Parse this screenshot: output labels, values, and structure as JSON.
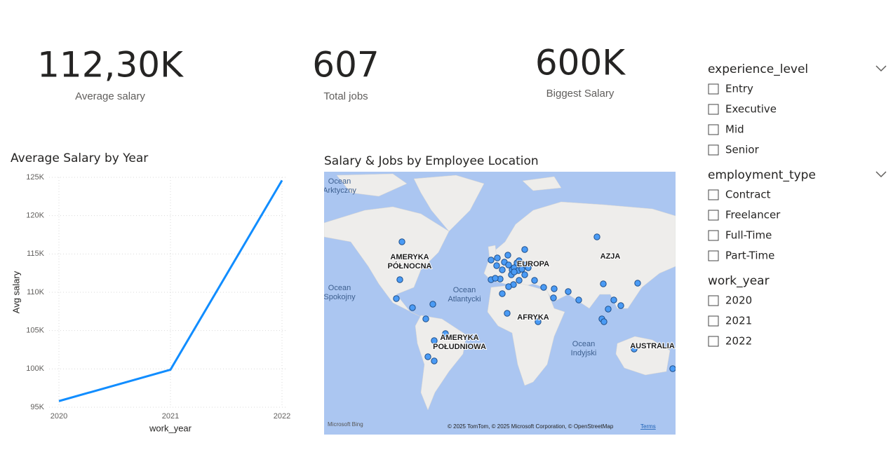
{
  "kpis": [
    {
      "value": "112,30K",
      "label": "Average salary"
    },
    {
      "value": "607",
      "label": "Total jobs"
    },
    {
      "value": "600K",
      "label": "Biggest Salary"
    }
  ],
  "chart_data": {
    "type": "line",
    "title": "Average Salary by Year",
    "x_label": "work_year",
    "y_label": "Avg salary",
    "categories": [
      "2020",
      "2021",
      "2022"
    ],
    "values": [
      95800,
      99900,
      124600
    ],
    "color": "#118DFF",
    "ylim": [
      95000,
      125000
    ],
    "yticks": [
      {
        "value": 95000,
        "label": "95K"
      },
      {
        "value": 100000,
        "label": "100K"
      },
      {
        "value": 105000,
        "label": "105K"
      },
      {
        "value": 110000,
        "label": "110K"
      },
      {
        "value": 115000,
        "label": "115K"
      },
      {
        "value": 120000,
        "label": "120K"
      },
      {
        "value": 125000,
        "label": "125K"
      }
    ],
    "grid": true
  },
  "map": {
    "title": "Salary & Jobs by Employee Location",
    "regions": [
      [
        "AMERYKA",
        "PÓŁNOCNA"
      ],
      [
        "EUROPA"
      ],
      [
        "AZJA"
      ],
      [
        "AFRYKA"
      ],
      [
        "AMERYKA",
        "POŁUDNIOWA"
      ],
      [
        "AUSTRALIA"
      ]
    ],
    "oceans": [
      [
        "Ocean",
        "Arktyczny"
      ],
      [
        "Ocean",
        "Spokojny"
      ],
      [
        "Ocean",
        "Atlantycki"
      ],
      [
        "Ocean",
        "Indyjski"
      ]
    ],
    "logo": "Microsoft Bing",
    "attribution": "© 2025 TomTom, © 2025 Microsoft Corporation, © OpenStreetMap",
    "terms": "Terms"
  },
  "slicers": [
    {
      "title": "experience_level",
      "items": [
        "Entry",
        "Executive",
        "Mid",
        "Senior"
      ]
    },
    {
      "title": "employment_type",
      "items": [
        "Contract",
        "Freelancer",
        "Full-Time",
        "Part-Time"
      ]
    },
    {
      "title": "work_year",
      "items": [
        "2020",
        "2021",
        "2022"
      ]
    }
  ]
}
